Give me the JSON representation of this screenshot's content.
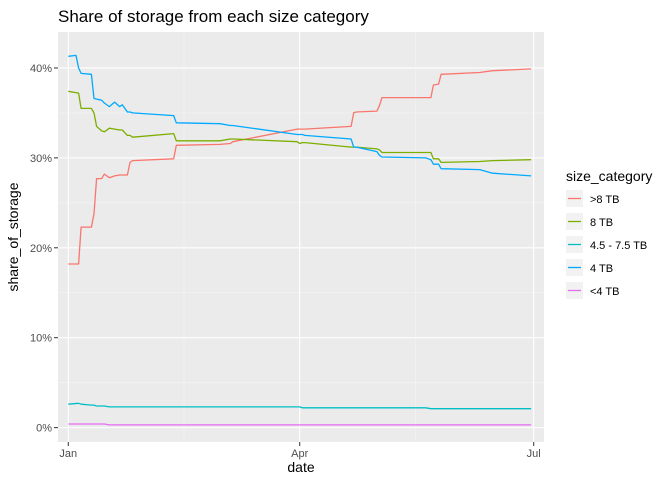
{
  "chart_data": {
    "type": "line",
    "title": "Share of storage from each size category",
    "xlabel": "date",
    "ylabel": "share_of_storage",
    "x_ticks": [
      "Jan",
      "Apr",
      "Jul"
    ],
    "y_ticks": [
      "0%",
      "10%",
      "20%",
      "30%",
      "40%"
    ],
    "xlim": [
      "2018-12-28",
      "2019-07-05"
    ],
    "ylim": [
      -0.016,
      0.44
    ],
    "grid": true,
    "legend_title": "size_category",
    "legend_position": "right",
    "series": [
      {
        "name": ">8 TB",
        "color": "#F8766D",
        "x": [
          "2019-01-01",
          "2019-01-05",
          "2019-01-06",
          "2019-01-10",
          "2019-01-11",
          "2019-01-12",
          "2019-01-14",
          "2019-01-15",
          "2019-01-17",
          "2019-01-19",
          "2019-01-21",
          "2019-01-22",
          "2019-01-24",
          "2019-01-25",
          "2019-01-26",
          "2019-02-11",
          "2019-02-12",
          "2019-03-01",
          "2019-03-05",
          "2019-03-06",
          "2019-03-31",
          "2019-04-01",
          "2019-04-02",
          "2019-04-03",
          "2019-04-21",
          "2019-04-22",
          "2019-04-23",
          "2019-05-01",
          "2019-05-02",
          "2019-05-03",
          "2019-05-20",
          "2019-05-22",
          "2019-05-23",
          "2019-05-25",
          "2019-05-26",
          "2019-06-10",
          "2019-06-15",
          "2019-06-30"
        ],
        "values": [
          0.182,
          0.182,
          0.223,
          0.223,
          0.238,
          0.277,
          0.277,
          0.282,
          0.278,
          0.28,
          0.281,
          0.281,
          0.281,
          0.295,
          0.297,
          0.299,
          0.314,
          0.315,
          0.316,
          0.318,
          0.332,
          0.332,
          0.332,
          0.332,
          0.335,
          0.35,
          0.351,
          0.352,
          0.358,
          0.367,
          0.367,
          0.367,
          0.381,
          0.382,
          0.393,
          0.395,
          0.397,
          0.399
        ]
      },
      {
        "name": "8 TB",
        "color": "#7CAE00",
        "x": [
          "2019-01-01",
          "2019-01-05",
          "2019-01-06",
          "2019-01-10",
          "2019-01-11",
          "2019-01-12",
          "2019-01-14",
          "2019-01-15",
          "2019-01-17",
          "2019-01-19",
          "2019-01-21",
          "2019-01-22",
          "2019-01-24",
          "2019-01-25",
          "2019-01-26",
          "2019-02-11",
          "2019-02-12",
          "2019-03-01",
          "2019-03-05",
          "2019-03-06",
          "2019-03-31",
          "2019-04-01",
          "2019-04-02",
          "2019-04-03",
          "2019-04-21",
          "2019-04-22",
          "2019-04-23",
          "2019-05-01",
          "2019-05-02",
          "2019-05-03",
          "2019-05-20",
          "2019-05-22",
          "2019-05-23",
          "2019-05-25",
          "2019-05-26",
          "2019-06-10",
          "2019-06-15",
          "2019-06-30"
        ],
        "values": [
          0.374,
          0.372,
          0.355,
          0.355,
          0.35,
          0.335,
          0.33,
          0.329,
          0.333,
          0.332,
          0.331,
          0.331,
          0.325,
          0.325,
          0.323,
          0.327,
          0.319,
          0.319,
          0.321,
          0.321,
          0.318,
          0.316,
          0.317,
          0.317,
          0.312,
          0.312,
          0.312,
          0.31,
          0.309,
          0.306,
          0.306,
          0.306,
          0.299,
          0.299,
          0.295,
          0.296,
          0.297,
          0.298
        ]
      },
      {
        "name": "4.5 - 7.5 TB",
        "color": "#00BFC4",
        "x": [
          "2019-01-01",
          "2019-01-05",
          "2019-01-06",
          "2019-01-10",
          "2019-01-11",
          "2019-01-12",
          "2019-01-14",
          "2019-01-15",
          "2019-01-17",
          "2019-01-19",
          "2019-01-21",
          "2019-01-22",
          "2019-01-24",
          "2019-01-25",
          "2019-01-26",
          "2019-02-11",
          "2019-02-12",
          "2019-03-01",
          "2019-03-05",
          "2019-03-06",
          "2019-03-31",
          "2019-04-01",
          "2019-04-02",
          "2019-04-03",
          "2019-04-21",
          "2019-04-22",
          "2019-04-23",
          "2019-05-01",
          "2019-05-02",
          "2019-05-03",
          "2019-05-20",
          "2019-05-22",
          "2019-05-23",
          "2019-05-25",
          "2019-05-26",
          "2019-06-10",
          "2019-06-15",
          "2019-06-30"
        ],
        "values": [
          0.026,
          0.027,
          0.026,
          0.025,
          0.025,
          0.024,
          0.024,
          0.024,
          0.023,
          0.023,
          0.023,
          0.023,
          0.023,
          0.023,
          0.023,
          0.023,
          0.023,
          0.023,
          0.023,
          0.023,
          0.023,
          0.023,
          0.022,
          0.022,
          0.022,
          0.022,
          0.022,
          0.022,
          0.022,
          0.022,
          0.022,
          0.021,
          0.021,
          0.021,
          0.021,
          0.021,
          0.021,
          0.021
        ]
      },
      {
        "name": "4 TB",
        "color": "#00A9FF",
        "x": [
          "2019-01-01",
          "2019-01-04",
          "2019-01-05",
          "2019-01-06",
          "2019-01-10",
          "2019-01-11",
          "2019-01-14",
          "2019-01-15",
          "2019-01-17",
          "2019-01-19",
          "2019-01-21",
          "2019-01-22",
          "2019-01-24",
          "2019-01-25",
          "2019-01-26",
          "2019-02-11",
          "2019-02-12",
          "2019-03-01",
          "2019-03-05",
          "2019-03-06",
          "2019-03-31",
          "2019-04-01",
          "2019-04-02",
          "2019-04-03",
          "2019-04-21",
          "2019-04-22",
          "2019-04-23",
          "2019-05-01",
          "2019-05-02",
          "2019-05-03",
          "2019-05-20",
          "2019-05-22",
          "2019-05-23",
          "2019-05-25",
          "2019-05-26",
          "2019-06-10",
          "2019-06-15",
          "2019-06-30"
        ],
        "values": [
          0.413,
          0.414,
          0.4,
          0.394,
          0.393,
          0.366,
          0.364,
          0.361,
          0.357,
          0.362,
          0.357,
          0.359,
          0.351,
          0.351,
          0.35,
          0.347,
          0.339,
          0.338,
          0.336,
          0.336,
          0.326,
          0.326,
          0.326,
          0.325,
          0.321,
          0.312,
          0.312,
          0.307,
          0.303,
          0.301,
          0.3,
          0.298,
          0.293,
          0.293,
          0.288,
          0.287,
          0.283,
          0.28
        ]
      },
      {
        "name": "<4 TB",
        "color": "#E76BF3",
        "x": [
          "2019-01-01",
          "2019-01-05",
          "2019-01-06",
          "2019-01-10",
          "2019-01-11",
          "2019-01-12",
          "2019-01-14",
          "2019-01-15",
          "2019-01-17",
          "2019-01-19",
          "2019-01-21",
          "2019-01-22",
          "2019-01-24",
          "2019-01-25",
          "2019-01-26",
          "2019-02-11",
          "2019-02-12",
          "2019-03-01",
          "2019-03-05",
          "2019-03-06",
          "2019-03-31",
          "2019-04-01",
          "2019-04-02",
          "2019-04-03",
          "2019-04-21",
          "2019-04-22",
          "2019-04-23",
          "2019-05-01",
          "2019-05-02",
          "2019-05-03",
          "2019-05-20",
          "2019-05-22",
          "2019-05-23",
          "2019-05-25",
          "2019-05-26",
          "2019-06-10",
          "2019-06-15",
          "2019-06-30"
        ],
        "values": [
          0.004,
          0.004,
          0.004,
          0.004,
          0.004,
          0.004,
          0.004,
          0.004,
          0.003,
          0.003,
          0.003,
          0.003,
          0.003,
          0.003,
          0.003,
          0.003,
          0.003,
          0.003,
          0.003,
          0.003,
          0.003,
          0.003,
          0.003,
          0.003,
          0.003,
          0.003,
          0.003,
          0.003,
          0.003,
          0.003,
          0.003,
          0.003,
          0.003,
          0.003,
          0.003,
          0.003,
          0.003,
          0.003
        ]
      }
    ]
  }
}
